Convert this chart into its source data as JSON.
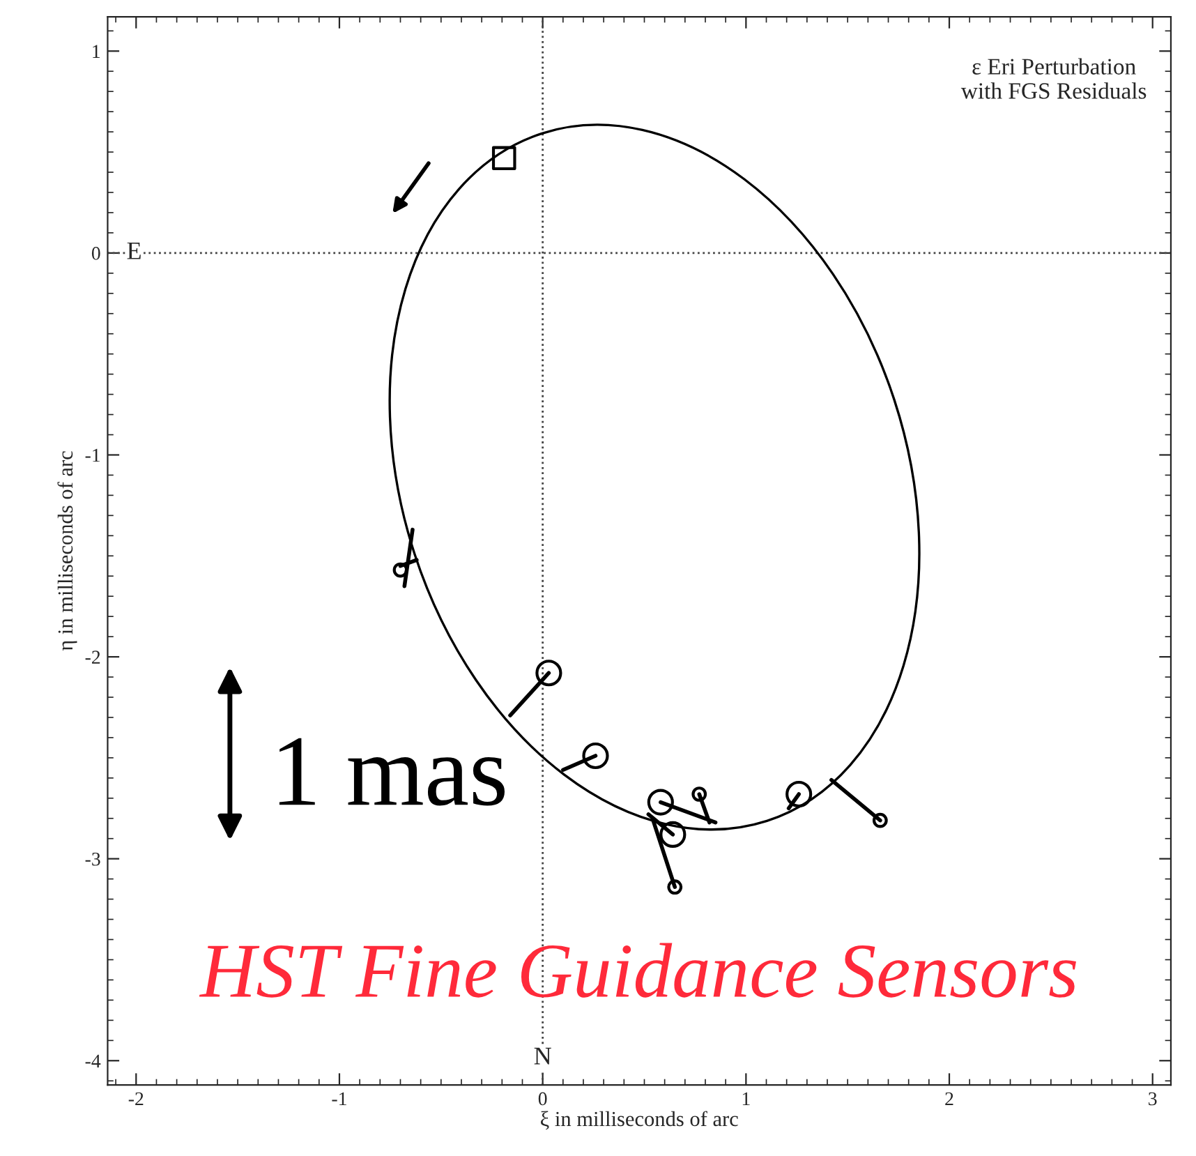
{
  "chart_data": {
    "type": "scatter",
    "title": "ε Eri Perturbation\nwith FGS Residuals",
    "xlabel": "ξ in milliseconds of arc",
    "ylabel": "η in milliseconds of arc",
    "xlim": [
      -2.14,
      3.09
    ],
    "ylim": [
      -4.12,
      1.17
    ],
    "xticks": [
      -2,
      -1,
      0,
      1,
      2,
      3
    ],
    "yticks": [
      -4,
      -3,
      -2,
      -1,
      0,
      1
    ],
    "grid": false,
    "legend": false,
    "ref_lines": [
      {
        "axis": "x",
        "value": 0,
        "line_style": "dotted",
        "label": "N"
      },
      {
        "axis": "y",
        "value": 0,
        "line_style": "dotted",
        "label": "E"
      }
    ],
    "annotations": [
      "1 mas",
      "HST Fine Guidance Sensors"
    ],
    "series": [
      {
        "type": "line",
        "color": "#000000",
        "marker": "none",
        "line_style": "solid",
        "x": [
          -0.64,
          -0.68,
          null,
          -0.7,
          -0.62,
          null,
          0.03,
          -0.16,
          null,
          0.26,
          0.1,
          null,
          0.58,
          0.85,
          null,
          0.77,
          0.82,
          null,
          0.64,
          0.52,
          null,
          0.65,
          0.54,
          null,
          1.26,
          1.21,
          null,
          1.66,
          1.42
        ],
        "values": [
          -1.37,
          -1.65,
          null,
          -1.55,
          -1.52,
          null,
          -2.08,
          -2.29,
          null,
          -2.49,
          -2.56,
          null,
          -2.72,
          -2.82,
          null,
          -2.68,
          -2.82,
          null,
          -2.88,
          -2.78,
          null,
          -3.14,
          -2.8,
          null,
          -2.68,
          -2.75,
          null,
          -2.81,
          -2.61
        ]
      },
      {
        "color": "#000000",
        "marker": "circle",
        "x": [
          0.03,
          0.26,
          0.58,
          0.64,
          1.26
        ],
        "values": [
          -2.08,
          -2.49,
          -2.72,
          -2.88,
          -2.68
        ]
      },
      {
        "color": "#000000",
        "marker": "circle",
        "x": [
          -0.7,
          0.77,
          0.65,
          1.66
        ],
        "values": [
          -1.57,
          -2.68,
          -3.14,
          -2.81
        ]
      },
      {
        "color": "#000000",
        "marker": "square",
        "x": [
          -0.19
        ],
        "values": [
          0.47
        ]
      }
    ]
  }
}
